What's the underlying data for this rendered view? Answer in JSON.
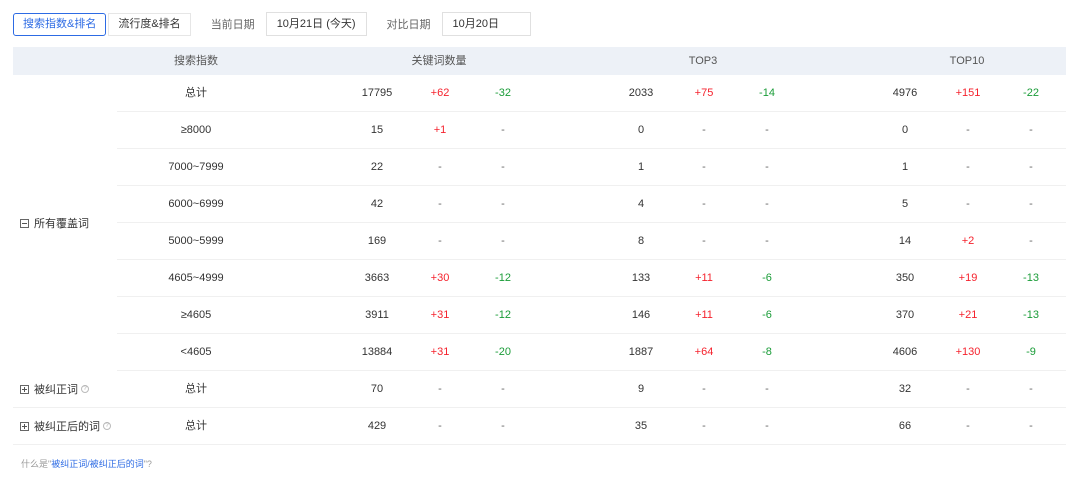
{
  "toolbar": {
    "tabs": [
      "搜索指数&排名",
      "流行度&排名"
    ],
    "current_date_label": "当前日期",
    "current_date_value": "10月21日 (今天)",
    "compare_date_label": "对比日期",
    "compare_date_value": "10月20日"
  },
  "table": {
    "headers": [
      "搜索指数",
      "关键词数量",
      "TOP3",
      "TOP10"
    ],
    "groups": [
      {
        "label": "所有覆盖词",
        "expanded": true,
        "has_help": false
      },
      {
        "label": "被纠正词",
        "expanded": false,
        "has_help": true
      },
      {
        "label": "被纠正后的词",
        "expanded": false,
        "has_help": true
      }
    ],
    "rows": [
      {
        "index": "总计",
        "kw": [
          "17795",
          "+62",
          "-32"
        ],
        "top3": [
          "2033",
          "+75",
          "-14"
        ],
        "top10": [
          "4976",
          "+151",
          "-22"
        ]
      },
      {
        "index": "≥8000",
        "kw": [
          "15",
          "+1",
          "-"
        ],
        "top3": [
          "0",
          "-",
          "-"
        ],
        "top10": [
          "0",
          "-",
          "-"
        ]
      },
      {
        "index": "7000~7999",
        "kw": [
          "22",
          "-",
          "-"
        ],
        "top3": [
          "1",
          "-",
          "-"
        ],
        "top10": [
          "1",
          "-",
          "-"
        ]
      },
      {
        "index": "6000~6999",
        "kw": [
          "42",
          "-",
          "-"
        ],
        "top3": [
          "4",
          "-",
          "-"
        ],
        "top10": [
          "5",
          "-",
          "-"
        ]
      },
      {
        "index": "5000~5999",
        "kw": [
          "169",
          "-",
          "-"
        ],
        "top3": [
          "8",
          "-",
          "-"
        ],
        "top10": [
          "14",
          "+2",
          "-"
        ]
      },
      {
        "index": "4605~4999",
        "kw": [
          "3663",
          "+30",
          "-12"
        ],
        "top3": [
          "133",
          "+11",
          "-6"
        ],
        "top10": [
          "350",
          "+19",
          "-13"
        ]
      },
      {
        "index": "≥4605",
        "kw": [
          "3911",
          "+31",
          "-12"
        ],
        "top3": [
          "146",
          "+11",
          "-6"
        ],
        "top10": [
          "370",
          "+21",
          "-13"
        ]
      },
      {
        "index": "<4605",
        "kw": [
          "13884",
          "+31",
          "-20"
        ],
        "top3": [
          "1887",
          "+64",
          "-8"
        ],
        "top10": [
          "4606",
          "+130",
          "-9"
        ]
      },
      {
        "index": "总计",
        "kw": [
          "70",
          "-",
          "-"
        ],
        "top3": [
          "9",
          "-",
          "-"
        ],
        "top10": [
          "32",
          "-",
          "-"
        ]
      },
      {
        "index": "总计",
        "kw": [
          "429",
          "-",
          "-"
        ],
        "top3": [
          "35",
          "-",
          "-"
        ],
        "top10": [
          "66",
          "-",
          "-"
        ]
      }
    ]
  },
  "footnote": {
    "prefix": "什么是\"",
    "link": "被纠正词/被纠正后的词",
    "suffix": "\"?"
  },
  "colors": {
    "accent": "#2d6be4",
    "increase": "#f5222d",
    "decrease": "#1a9c38",
    "header_bg": "#edf1f7"
  }
}
